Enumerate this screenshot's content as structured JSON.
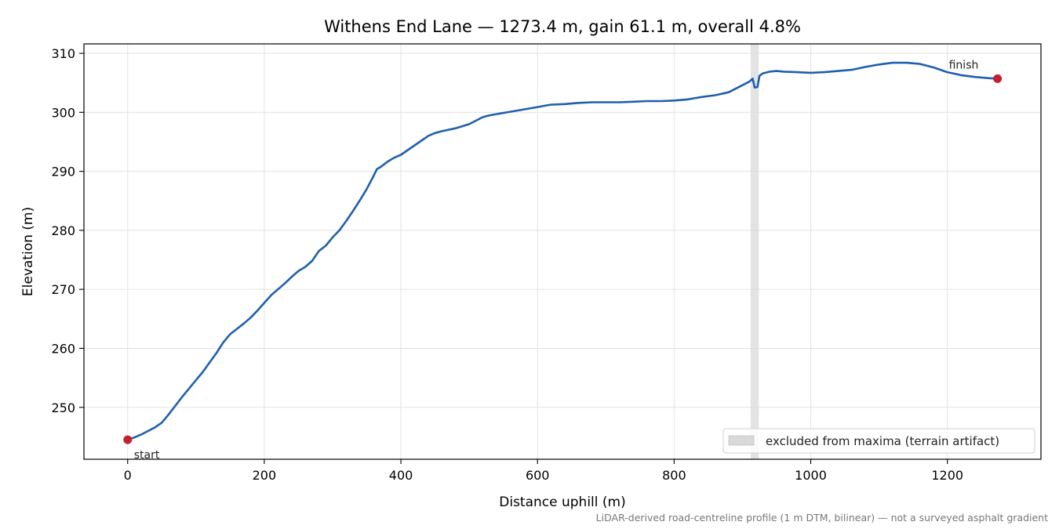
{
  "chart_data": {
    "type": "line",
    "title": "Withens End Lane — 1273.4 m, gain 61.1 m, overall 4.8%",
    "xlabel": "Distance uphill (m)",
    "ylabel": "Elevation (m)",
    "xlim": [
      -64,
      1337
    ],
    "ylim": [
      241.2,
      311.6
    ],
    "xticks": [
      0,
      200,
      400,
      600,
      800,
      1000,
      1200
    ],
    "yticks": [
      250,
      260,
      270,
      280,
      290,
      300,
      310
    ],
    "grid": true,
    "series": [
      {
        "name": "",
        "color": "#1f5fae",
        "x": [
          0,
          10,
          20,
          30,
          40,
          50,
          60,
          70,
          80,
          90,
          100,
          110,
          120,
          130,
          140,
          150,
          160,
          170,
          180,
          190,
          200,
          210,
          220,
          230,
          240,
          250,
          260,
          270,
          280,
          290,
          300,
          310,
          320,
          330,
          340,
          350,
          360,
          365,
          370,
          380,
          390,
          400,
          410,
          420,
          430,
          440,
          450,
          460,
          480,
          500,
          520,
          530,
          540,
          560,
          580,
          600,
          610,
          620,
          640,
          660,
          680,
          700,
          720,
          740,
          760,
          780,
          800,
          820,
          840,
          860,
          880,
          890,
          900,
          910,
          915,
          918,
          922,
          925,
          930,
          940,
          950,
          960,
          980,
          1000,
          1020,
          1040,
          1060,
          1080,
          1100,
          1120,
          1140,
          1160,
          1180,
          1200,
          1220,
          1240,
          1260,
          1273.4
        ],
        "y": [
          244.5,
          244.9,
          245.4,
          246.0,
          246.6,
          247.4,
          248.8,
          250.3,
          251.8,
          253.2,
          254.6,
          256.0,
          257.6,
          259.2,
          261.0,
          262.4,
          263.3,
          264.2,
          265.2,
          266.4,
          267.7,
          269.0,
          270.0,
          271.0,
          272.1,
          273.1,
          273.8,
          274.8,
          276.5,
          277.4,
          278.8,
          280.0,
          281.6,
          283.3,
          285.1,
          287.0,
          289.2,
          290.4,
          290.7,
          291.6,
          292.3,
          292.8,
          293.6,
          294.4,
          295.2,
          296.0,
          296.5,
          296.8,
          297.3,
          298.0,
          299.2,
          299.5,
          299.7,
          300.1,
          300.5,
          300.9,
          301.1,
          301.3,
          301.4,
          301.6,
          301.7,
          301.7,
          301.7,
          301.8,
          301.9,
          301.9,
          302.0,
          302.2,
          302.6,
          302.9,
          303.4,
          304.0,
          304.6,
          305.2,
          305.7,
          304.2,
          304.3,
          306.2,
          306.6,
          306.9,
          307.0,
          306.9,
          306.8,
          306.7,
          306.8,
          307.0,
          307.2,
          307.7,
          308.1,
          308.4,
          308.4,
          308.2,
          307.6,
          306.8,
          306.3,
          306.0,
          305.8,
          305.7
        ]
      }
    ],
    "markers": [
      {
        "label": "start",
        "x": 0,
        "y": 244.5,
        "color": "#c4202f"
      },
      {
        "label": "finish",
        "x": 1273.4,
        "y": 305.7,
        "color": "#c4202f"
      }
    ],
    "excluded_region": {
      "x0": 912,
      "x1": 924,
      "label": "excluded from maxima (terrain artifact)"
    },
    "legend_position": "bottom-right",
    "footnote": "LiDAR-derived road-centreline profile (1 m DTM, bilinear) — not a surveyed asphalt gradient"
  }
}
